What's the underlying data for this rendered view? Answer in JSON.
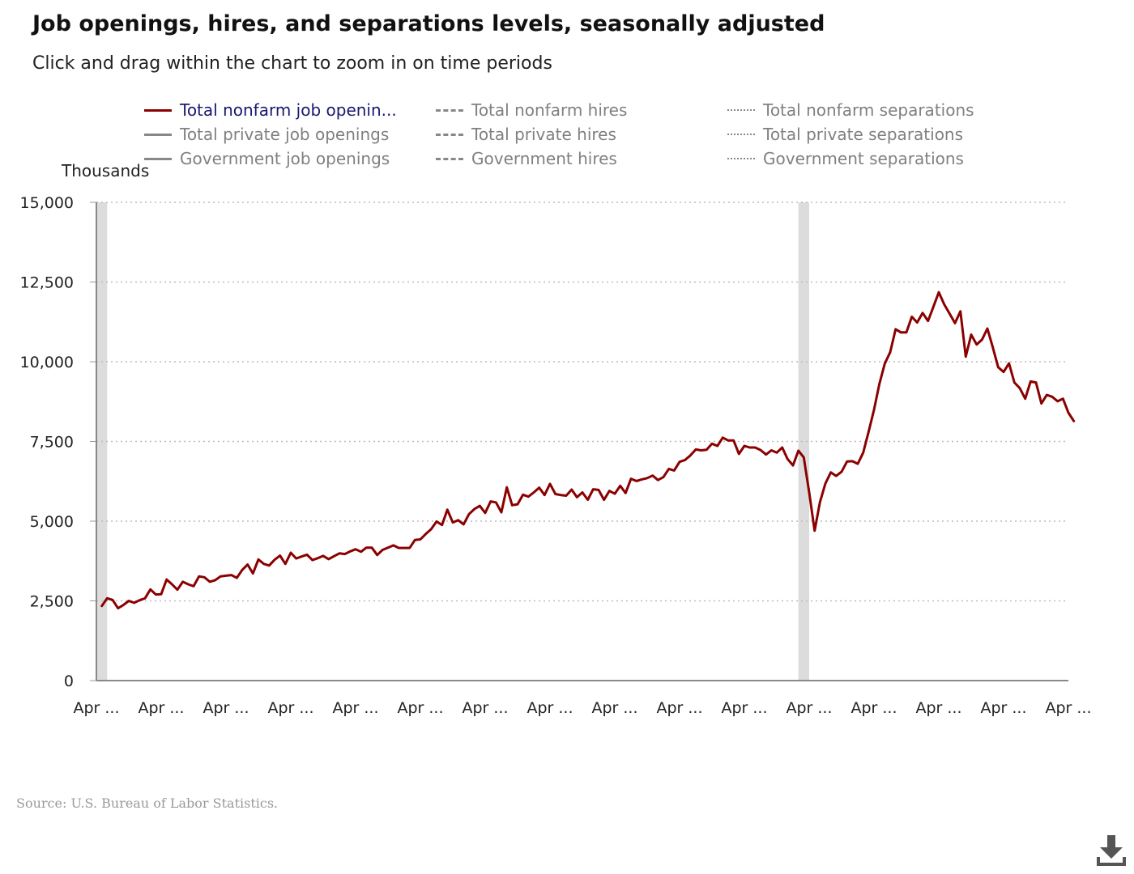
{
  "title": "Job openings, hires, and separations levels, seasonally adjusted",
  "subtitle": "Click and drag within the chart to zoom in on time periods",
  "legend": {
    "items": [
      {
        "label": "Total nonfarm job openin...",
        "style": "solid",
        "active": true
      },
      {
        "label": "Total nonfarm hires",
        "style": "dash",
        "active": false
      },
      {
        "label": "Total nonfarm separations",
        "style": "dot",
        "active": false
      },
      {
        "label": "Total private job openings",
        "style": "solid",
        "active": false
      },
      {
        "label": "Total private hires",
        "style": "dash",
        "active": false
      },
      {
        "label": "Total private separations",
        "style": "dot",
        "active": false
      },
      {
        "label": "Government job openings",
        "style": "solid",
        "active": false
      },
      {
        "label": "Government hires",
        "style": "dash",
        "active": false
      },
      {
        "label": "Government separations",
        "style": "dot",
        "active": false
      }
    ]
  },
  "source": "Source: U.S. Bureau of Labor Statistics.",
  "download_icon": "download-icon",
  "colors": {
    "series": "#8b0000",
    "active_legend_text": "#191970",
    "inactive": "#808080",
    "recession": "#dcdcdc",
    "grid": "#bbbbbb"
  },
  "chart_data": {
    "type": "line",
    "ylabel": "Thousands",
    "ylim": [
      0,
      15000
    ],
    "yticks": [
      0,
      2500,
      5000,
      7500,
      10000,
      12500,
      15000
    ],
    "ytick_labels": [
      "0",
      "2,500",
      "5,000",
      "7,500",
      "10,000",
      "12,500",
      "15,000"
    ],
    "xlim": [
      "2009-04",
      "2024-04"
    ],
    "xtick_labels": [
      "Apr ...",
      "Apr ...",
      "Apr ...",
      "Apr ...",
      "Apr ...",
      "Apr ...",
      "Apr ...",
      "Apr ...",
      "Apr ...",
      "Apr ...",
      "Apr ...",
      "Apr ...",
      "Apr ...",
      "Apr ...",
      "Apr ...",
      "Apr ..."
    ],
    "xtick_dates": [
      "2009-04",
      "2010-04",
      "2011-04",
      "2012-04",
      "2013-04",
      "2014-04",
      "2015-04",
      "2016-04",
      "2017-04",
      "2018-04",
      "2019-04",
      "2020-04",
      "2021-04",
      "2022-04",
      "2023-04",
      "2024-04"
    ],
    "recessions": [
      [
        "2009-04",
        "2009-06"
      ],
      [
        "2020-02",
        "2020-04"
      ]
    ],
    "grid": "horizontal dotted",
    "series": [
      {
        "name": "Total nonfarm job openings",
        "x_start": "2009-05",
        "frequency": "monthly",
        "values": [
          2340,
          2580,
          2530,
          2270,
          2370,
          2500,
          2440,
          2520,
          2580,
          2860,
          2700,
          2710,
          3170,
          3020,
          2850,
          3100,
          3020,
          2960,
          3270,
          3240,
          3100,
          3150,
          3270,
          3290,
          3310,
          3220,
          3470,
          3640,
          3360,
          3800,
          3660,
          3610,
          3790,
          3920,
          3660,
          4010,
          3830,
          3890,
          3950,
          3780,
          3840,
          3910,
          3810,
          3900,
          3990,
          3970,
          4050,
          4120,
          4040,
          4170,
          4170,
          3940,
          4100,
          4170,
          4240,
          4160,
          4160,
          4160,
          4410,
          4430,
          4600,
          4750,
          4990,
          4880,
          5360,
          4960,
          5030,
          4900,
          5220,
          5380,
          5480,
          5260,
          5620,
          5590,
          5280,
          6060,
          5500,
          5530,
          5830,
          5770,
          5900,
          6050,
          5820,
          6170,
          5850,
          5820,
          5800,
          5990,
          5750,
          5900,
          5670,
          6000,
          5980,
          5670,
          5950,
          5860,
          6110,
          5880,
          6330,
          6260,
          6310,
          6350,
          6430,
          6290,
          6380,
          6640,
          6590,
          6860,
          6920,
          7060,
          7250,
          7220,
          7240,
          7430,
          7360,
          7620,
          7530,
          7530,
          7110,
          7360,
          7310,
          7310,
          7230,
          7090,
          7220,
          7150,
          7310,
          6950,
          6750,
          7210,
          7000,
          5900,
          4700,
          5600,
          6180,
          6530,
          6420,
          6550,
          6870,
          6880,
          6800,
          7150,
          7800,
          8490,
          9310,
          9940,
          10300,
          11020,
          10920,
          10920,
          11410,
          11230,
          11530,
          11280,
          11720,
          12180,
          11800,
          11510,
          11210,
          11580,
          10160,
          10850,
          10540,
          10690,
          11040,
          10450,
          9830,
          9680,
          9950,
          9350,
          9170,
          8840,
          9380,
          9350,
          8690,
          8960,
          8900,
          8760,
          8840,
          8400,
          8140
        ]
      }
    ]
  }
}
